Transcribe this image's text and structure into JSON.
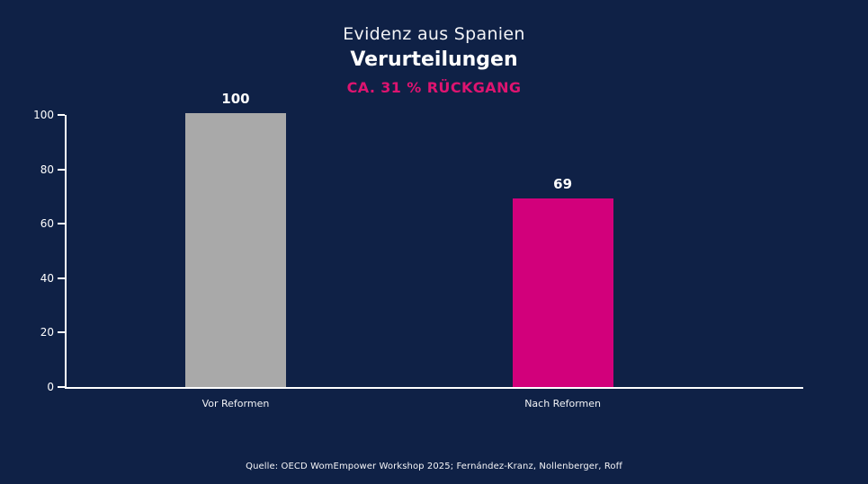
{
  "colors": {
    "background": "#0F2146",
    "text": "#FFFFFF",
    "highlight": "#DE1470",
    "axis": "#FFFFFF",
    "bar_gray": "#A9A9A9",
    "bar_magenta": "#D2007B"
  },
  "header": {
    "title": "Evidenz aus Spanien",
    "subtitle": "Verurteilungen",
    "highlight": "CA. 31 % RÜCKGANG"
  },
  "footer": {
    "source": "Quelle: OECD WomEmpower Workshop 2025; Fernández-Kranz, Nollenberger, Roff"
  },
  "chart_data": {
    "type": "bar",
    "title": "Evidenz aus Spanien",
    "subtitle": "Verurteilungen",
    "annotation": "CA. 31 % RÜCKGANG",
    "categories": [
      "Vor Reformen",
      "Nach Reformen"
    ],
    "values": [
      100,
      69
    ],
    "value_labels": [
      "100",
      "69"
    ],
    "bar_colors": [
      "#A9A9A9",
      "#D2007B"
    ],
    "xlabel": "",
    "ylabel": "",
    "yticks": [
      0,
      20,
      40,
      60,
      80,
      100
    ],
    "ylim": [
      0,
      100
    ],
    "grid": false,
    "legend": false,
    "source": "Quelle: OECD WomEmpower Workshop 2025; Fernández-Kranz, Nollenberger, Roff"
  }
}
